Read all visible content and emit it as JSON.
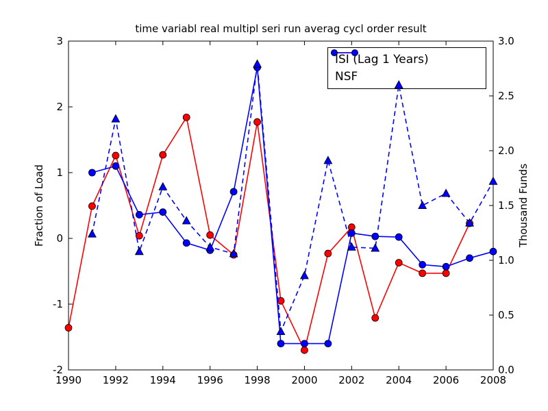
{
  "title": "time variabl real multipl seri run averag cycl order result",
  "axes": {
    "x": {
      "ticks": [
        "1990",
        "1992",
        "1994",
        "1996",
        "1998",
        "2000",
        "2002",
        "2004",
        "2006",
        "2008"
      ],
      "tick_values": [
        1990,
        1992,
        1994,
        1996,
        1998,
        2000,
        2002,
        2004,
        2006,
        2008
      ]
    },
    "y_left": {
      "label": "Fraction of Load",
      "ticks": [
        "3",
        "2",
        "1",
        "0",
        "-1",
        "-2"
      ],
      "tick_values": [
        3,
        2,
        1,
        0,
        -1,
        -2
      ]
    },
    "y_right": {
      "label": "Thousand Funds",
      "ticks": [
        "3.0",
        "2.5",
        "2.0",
        "1.5",
        "1.0",
        "0.5",
        "0.0"
      ],
      "tick_values": [
        3.0,
        2.5,
        2.0,
        1.5,
        1.0,
        0.5,
        0.0
      ]
    }
  },
  "legend": {
    "items": [
      {
        "label": "ISI (Lag 1 Years)",
        "color": "#ff0000",
        "marker": "circle"
      },
      {
        "label": "NSF",
        "color": "#0000ff",
        "marker": "circle"
      }
    ]
  },
  "chart_data": {
    "type": "line",
    "title": "time variabl real multipl seri run averag cycl order result",
    "xlabel": "",
    "ylabel_left": "Fraction of Load",
    "ylabel_right": "Thousand Funds",
    "xlim": [
      1990,
      2008
    ],
    "ylim_left": [
      -2,
      3
    ],
    "ylim_right": [
      0.0,
      3.0
    ],
    "grid": false,
    "legend_position": "upper right",
    "x": [
      1990,
      1991,
      1992,
      1993,
      1994,
      1995,
      1996,
      1997,
      1998,
      1999,
      2000,
      2001,
      2002,
      2003,
      2004,
      2005,
      2006,
      2007,
      2008
    ],
    "series": [
      {
        "name": "ISI (Lag 1 Years)",
        "axis": "left",
        "color": "#ff0000",
        "style": "solid",
        "marker": "circle",
        "values": [
          -1.36,
          0.49,
          1.26,
          0.04,
          1.27,
          1.84,
          0.05,
          -0.25,
          1.77,
          -0.95,
          -1.7,
          -0.23,
          0.17,
          -1.21,
          -0.37,
          -0.53,
          -0.53,
          0.23,
          null
        ]
      },
      {
        "name": "NSF",
        "axis": "left",
        "color": "#0000ff",
        "style": "solid",
        "marker": "circle",
        "values": [
          null,
          1.0,
          1.1,
          0.36,
          0.4,
          -0.07,
          -0.18,
          0.71,
          2.6,
          -1.6,
          -1.6,
          -1.6,
          0.08,
          0.03,
          0.02,
          -0.4,
          -0.43,
          -0.3,
          -0.2
        ]
      },
      {
        "name": "unlabeled (Thousand Funds)",
        "axis": "right",
        "color": "#0000ff",
        "style": "dashed",
        "marker": "triangle",
        "values": [
          null,
          1.24,
          2.29,
          1.08,
          1.67,
          1.36,
          1.12,
          1.06,
          2.79,
          0.35,
          0.86,
          1.91,
          1.12,
          1.11,
          2.6,
          1.5,
          1.61,
          1.34,
          1.72
        ]
      }
    ]
  }
}
